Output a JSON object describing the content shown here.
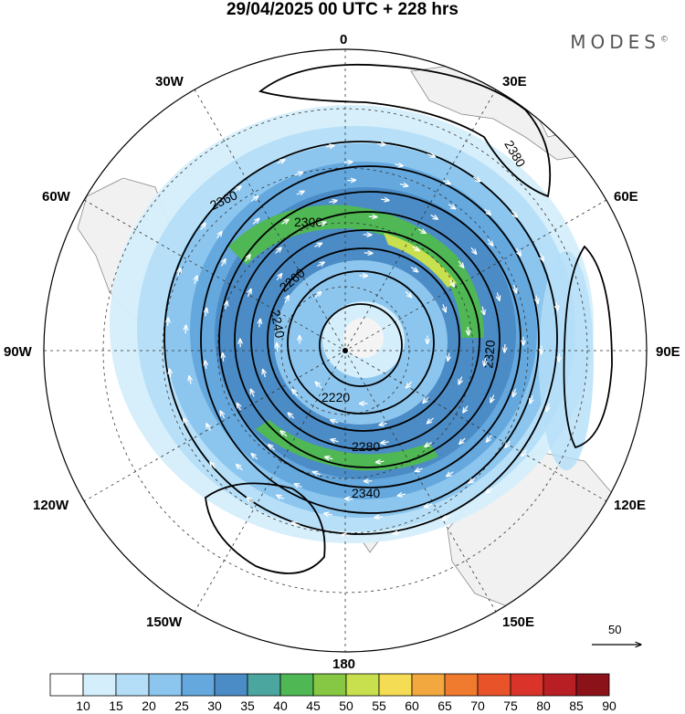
{
  "title": "29/04/2025  00 UTC  + 228 hrs",
  "brand": "MODES",
  "brand_mark": "©",
  "colors": {
    "land": "#f2f2f2",
    "coast": "#888888",
    "wind_shades": [
      "#ffffff",
      "#d4eefb",
      "#b4def7",
      "#8cc6ee",
      "#64a8de",
      "#4b8cc6",
      "#4ca6a0",
      "#4fb854",
      "#86c843",
      "#c8df4e",
      "#f4dc54",
      "#f2a83e",
      "#f07a2e",
      "#e9532a",
      "#d9332a",
      "#b81f24",
      "#8b1218"
    ]
  },
  "longitude_labels": {
    "top": "0",
    "bottom": "180",
    "left": "90W",
    "right": "90E",
    "upper_left": "30W",
    "upper_right": "30E",
    "mid_upper_left": "60W",
    "mid_upper_right": "60E",
    "mid_lower_left": "120W",
    "mid_lower_right": "120E",
    "lower_left": "150W",
    "lower_right": "150E"
  },
  "contour_labels": [
    "2220",
    "2240",
    "2260",
    "2280",
    "2300",
    "2320",
    "2340",
    "2360",
    "2380"
  ],
  "reference_vector": {
    "value": "50"
  },
  "colorbar": {
    "ticks": [
      "10",
      "15",
      "20",
      "25",
      "30",
      "35",
      "40",
      "45",
      "50",
      "55",
      "60",
      "65",
      "70",
      "75",
      "80",
      "85",
      "90"
    ]
  }
}
